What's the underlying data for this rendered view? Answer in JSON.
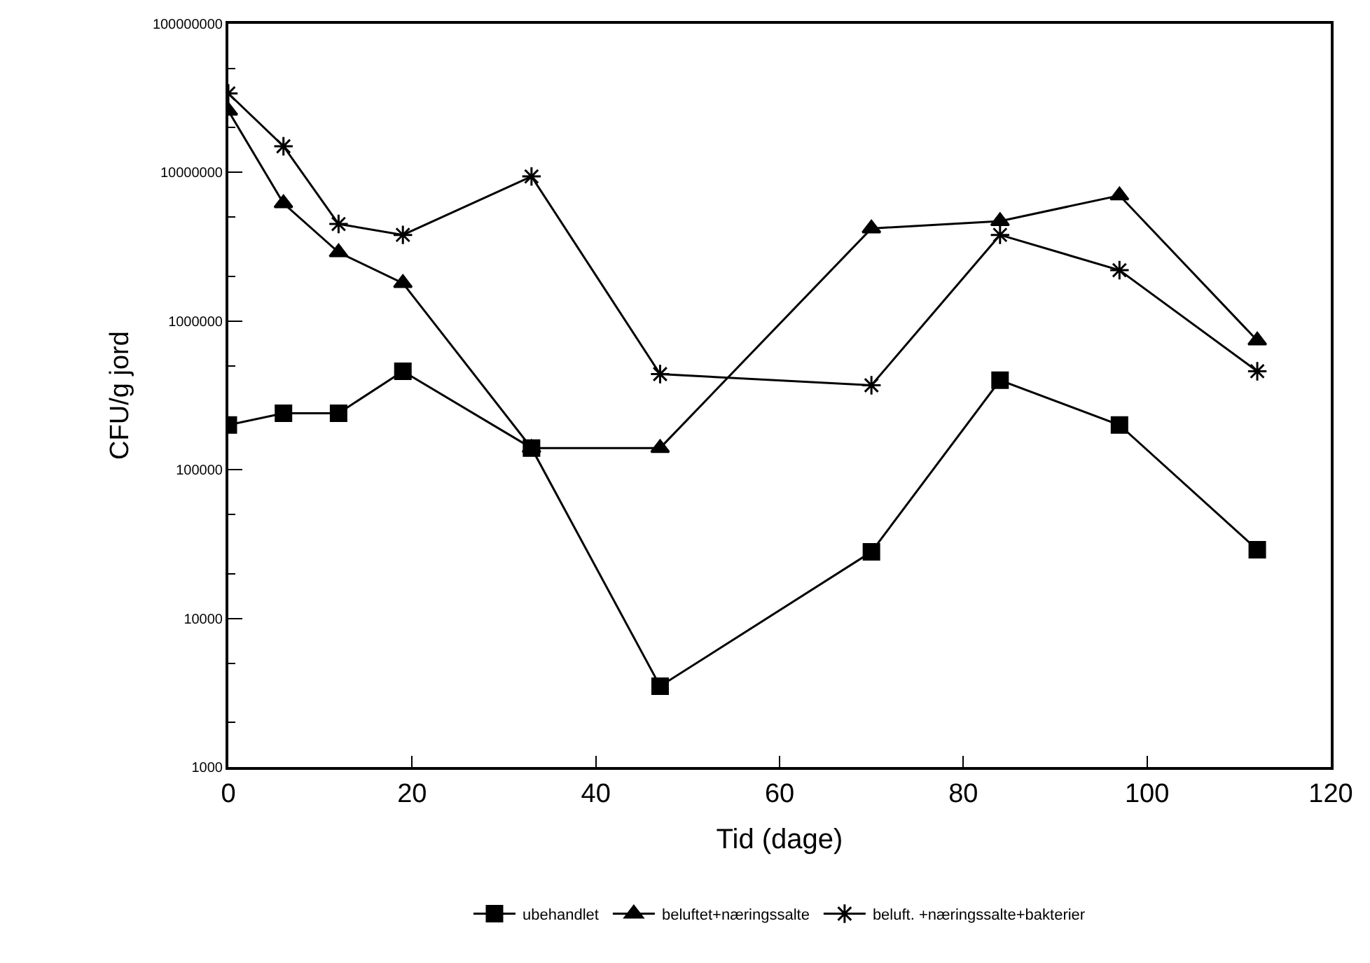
{
  "chart_data": {
    "type": "line",
    "xlabel": "Tid (dage)",
    "ylabel": "CFU/g jord",
    "x": [
      0,
      6,
      12,
      19,
      33,
      47,
      70,
      84,
      97,
      112
    ],
    "series": [
      {
        "name": "ubehandlet",
        "color": "#000000",
        "marker": "square",
        "values": [
          200000,
          240000,
          240000,
          460000,
          140000,
          3500,
          28000,
          400000,
          200000,
          29000
        ]
      },
      {
        "name": "beluftet+næringssalte",
        "color": "#000000",
        "marker": "triangle",
        "values": [
          26000000,
          6200000,
          2900000,
          1800000,
          140000,
          140000,
          4200000,
          4700000,
          7000000,
          740000
        ]
      },
      {
        "name": "beluft. +næringssalte+bakterier",
        "color": "#000000",
        "marker": "cross",
        "values": [
          34000000,
          15000000,
          4500000,
          3800000,
          9400000,
          440000,
          370000,
          3800000,
          2200000,
          460000
        ]
      }
    ],
    "log": "y",
    "xlim": [
      0,
      120
    ],
    "xticks": [
      0,
      20,
      40,
      60,
      80,
      100,
      120
    ],
    "ylim": [
      1000,
      100000000
    ],
    "yticks": [
      1000,
      10000,
      100000,
      1000000,
      10000000,
      100000000
    ],
    "legend": "bottom",
    "line_style": "solid"
  }
}
